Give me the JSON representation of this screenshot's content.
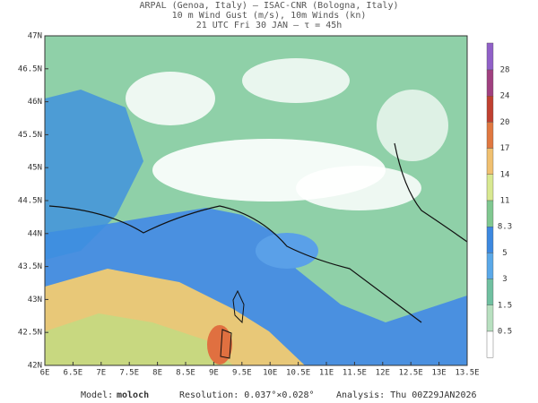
{
  "header": {
    "line1": "ARPAL (Genoa, Italy)  –  ISAC-CNR (Bologna, Italy)",
    "line2": "10 m Wind Gust (m/s), 10m Winds (kn)",
    "line3": "21 UTC Fri 30 JAN  –  τ = 45h"
  },
  "map": {
    "lat_labels": [
      "47N",
      "46.5N",
      "46N",
      "45.5N",
      "45N",
      "44.5N",
      "44N",
      "43.5N",
      "43N",
      "42.5N",
      "42N"
    ],
    "lon_labels": [
      "6E",
      "6.5E",
      "7E",
      "7.5E",
      "8E",
      "8.5E",
      "9E",
      "9.5E",
      "10E",
      "10.5E",
      "11E",
      "11.5E",
      "12E",
      "12.5E",
      "13E",
      "13.5E"
    ]
  },
  "colorbar": {
    "labels": [
      "28",
      "24",
      "20",
      "17",
      "14",
      "11",
      "8.3",
      "5",
      "3",
      "1.5",
      "0.5"
    ],
    "colors": [
      "#9060c8",
      "#a04080",
      "#c04030",
      "#e07840",
      "#f0c070",
      "#d8e890",
      "#80c890",
      "#3c88e0",
      "#5aa8e8",
      "#70c0a0",
      "#b8e0c0",
      "#ffffff"
    ]
  },
  "footer": {
    "model_label": "Model:",
    "model": "moloch",
    "resolution": "Resolution: 0.037°×0.028°",
    "analysis": "Analysis: Thu 00Z29JAN2026"
  }
}
